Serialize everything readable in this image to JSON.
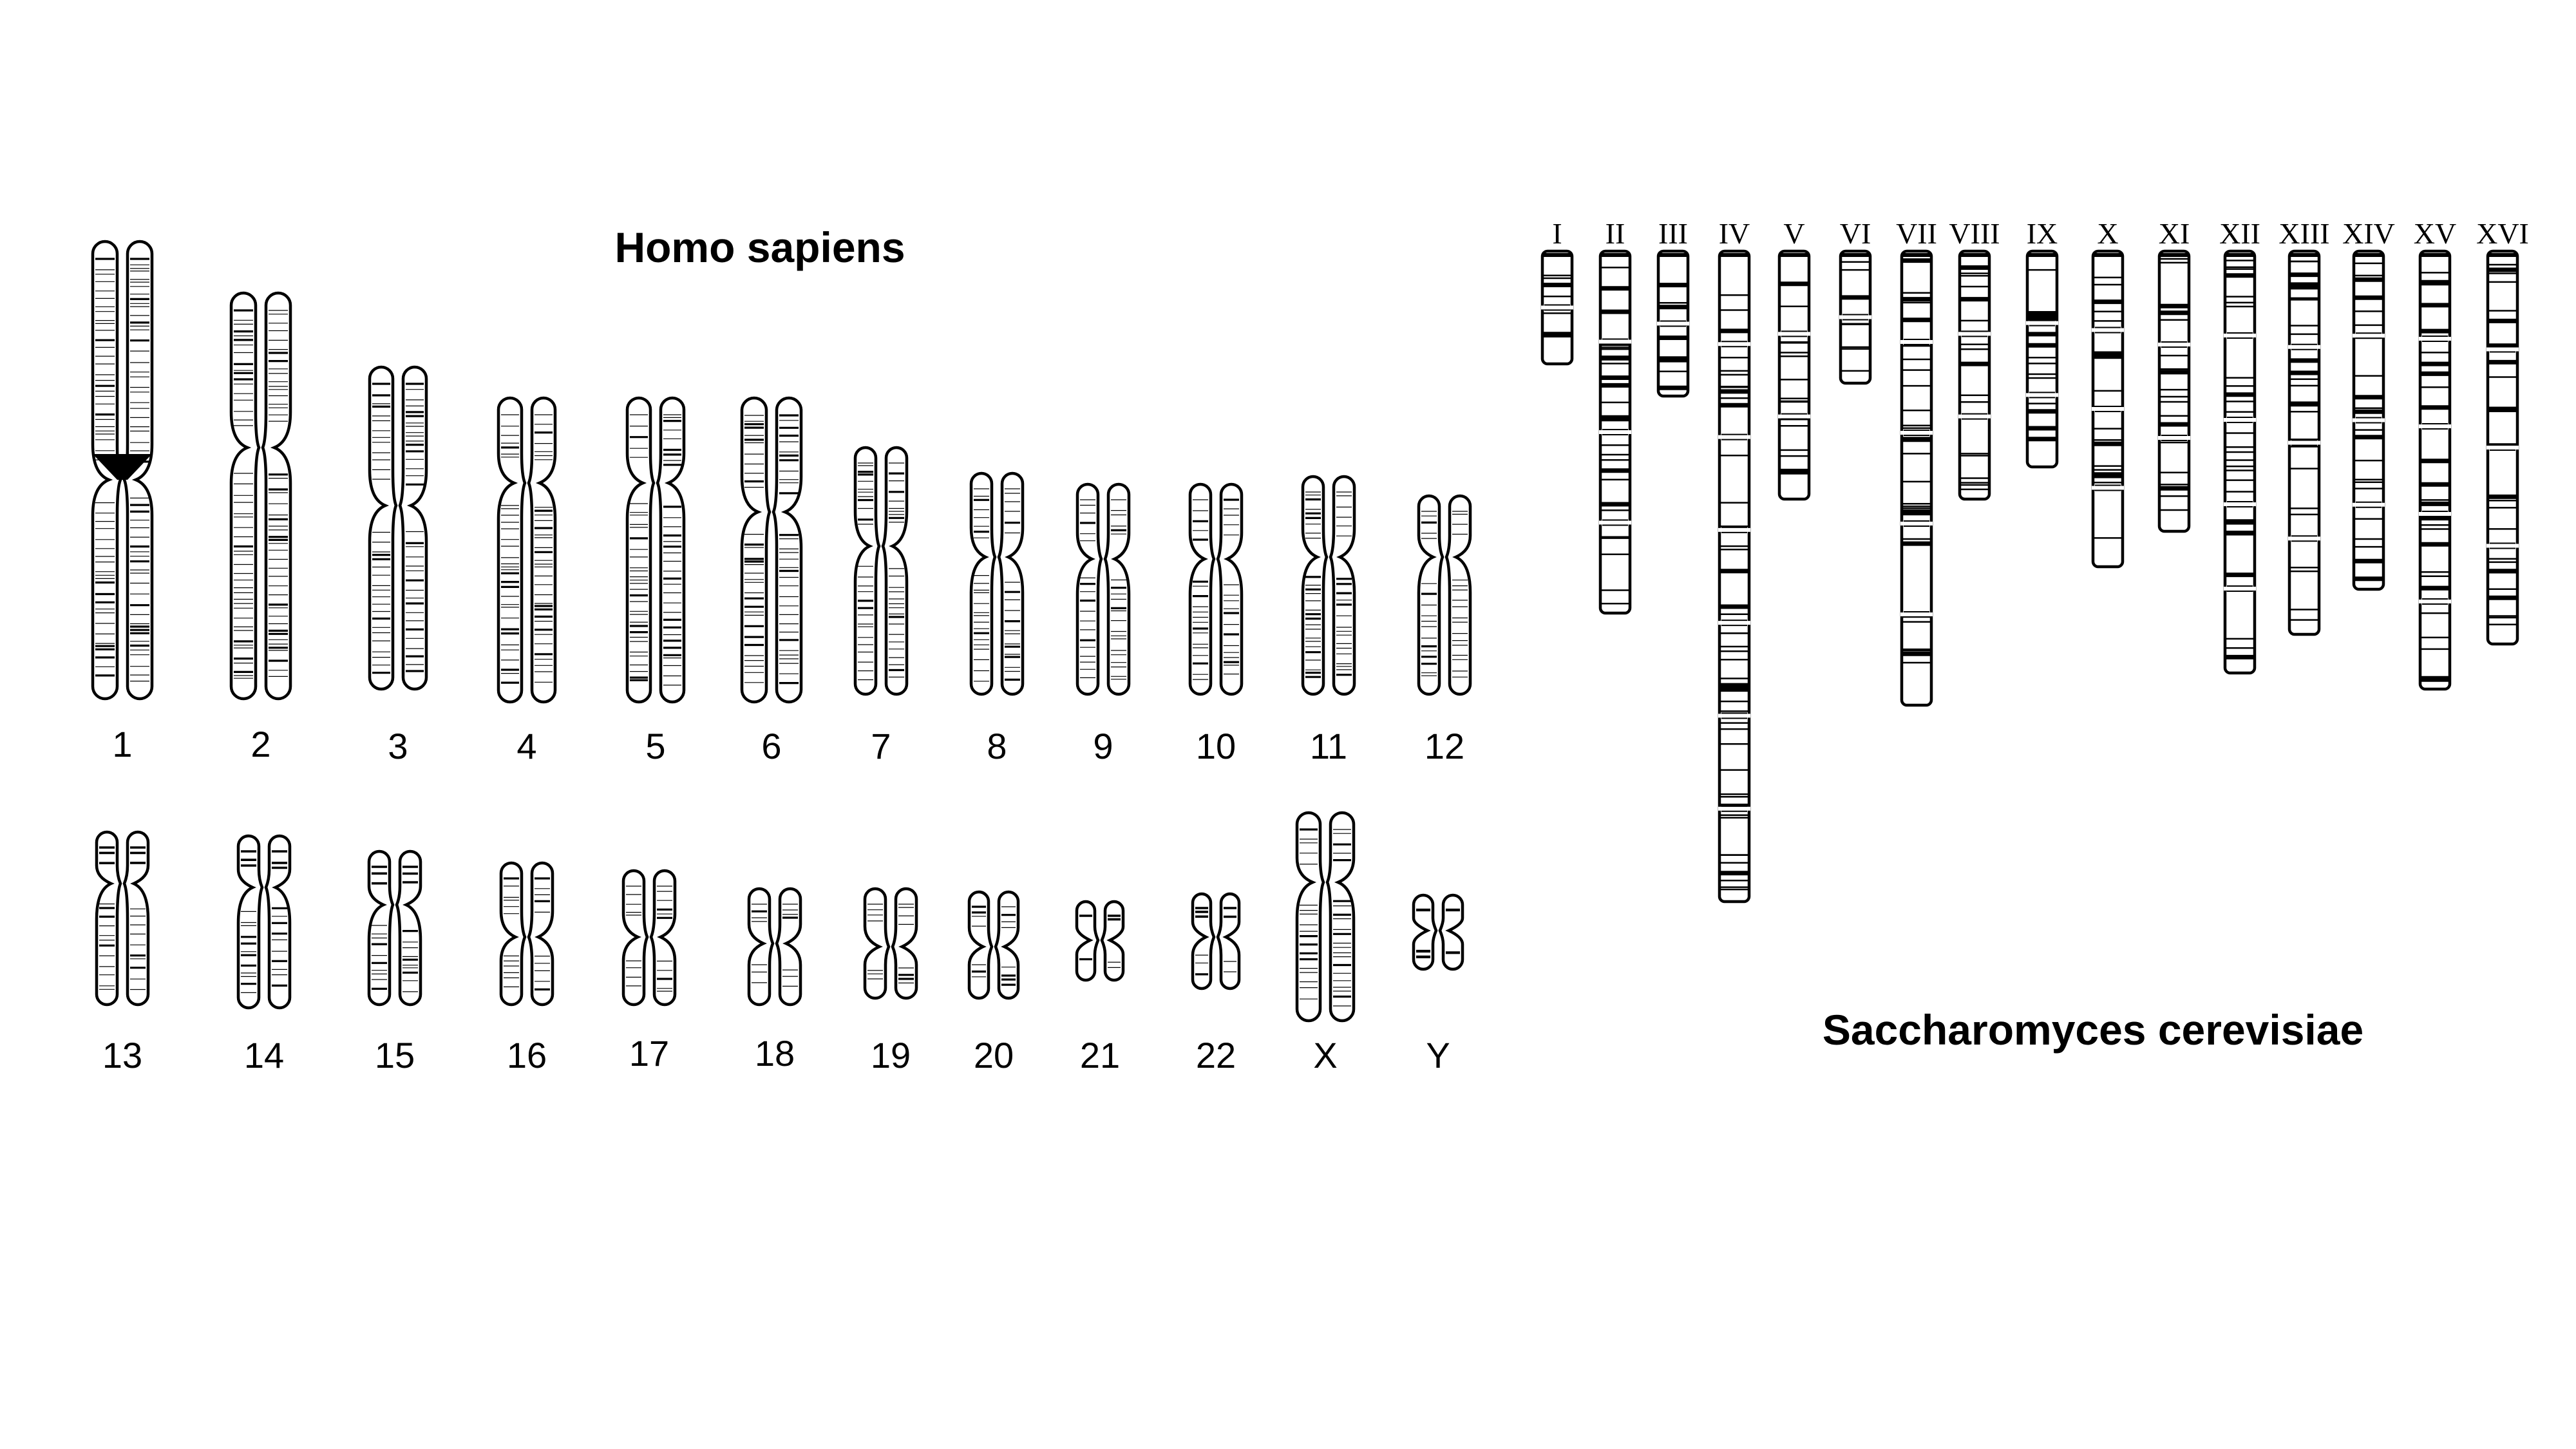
{
  "human": {
    "title": "Homo sapiens",
    "chromosomes": [
      {
        "label": "1"
      },
      {
        "label": "2"
      },
      {
        "label": "3"
      },
      {
        "label": "4"
      },
      {
        "label": "5"
      },
      {
        "label": "6"
      },
      {
        "label": "7"
      },
      {
        "label": "8"
      },
      {
        "label": "9"
      },
      {
        "label": "10"
      },
      {
        "label": "11"
      },
      {
        "label": "12"
      },
      {
        "label": "13"
      },
      {
        "label": "14"
      },
      {
        "label": "15"
      },
      {
        "label": "16"
      },
      {
        "label": "17"
      },
      {
        "label": "18"
      },
      {
        "label": "19"
      },
      {
        "label": "20"
      },
      {
        "label": "21"
      },
      {
        "label": "22"
      },
      {
        "label": "X"
      },
      {
        "label": "Y"
      }
    ]
  },
  "yeast": {
    "title": "Saccharomyces cerevisiae",
    "chromosomes": [
      {
        "label": "I"
      },
      {
        "label": "II"
      },
      {
        "label": "III"
      },
      {
        "label": "IV"
      },
      {
        "label": "V"
      },
      {
        "label": "VI"
      },
      {
        "label": "VII"
      },
      {
        "label": "VIII"
      },
      {
        "label": "IX"
      },
      {
        "label": "X"
      },
      {
        "label": "XI"
      },
      {
        "label": "XII"
      },
      {
        "label": "XIII"
      },
      {
        "label": "XIV"
      },
      {
        "label": "XV"
      },
      {
        "label": "XVI"
      }
    ]
  },
  "colors": {
    "ink": "#000000",
    "background": "#ffffff"
  }
}
